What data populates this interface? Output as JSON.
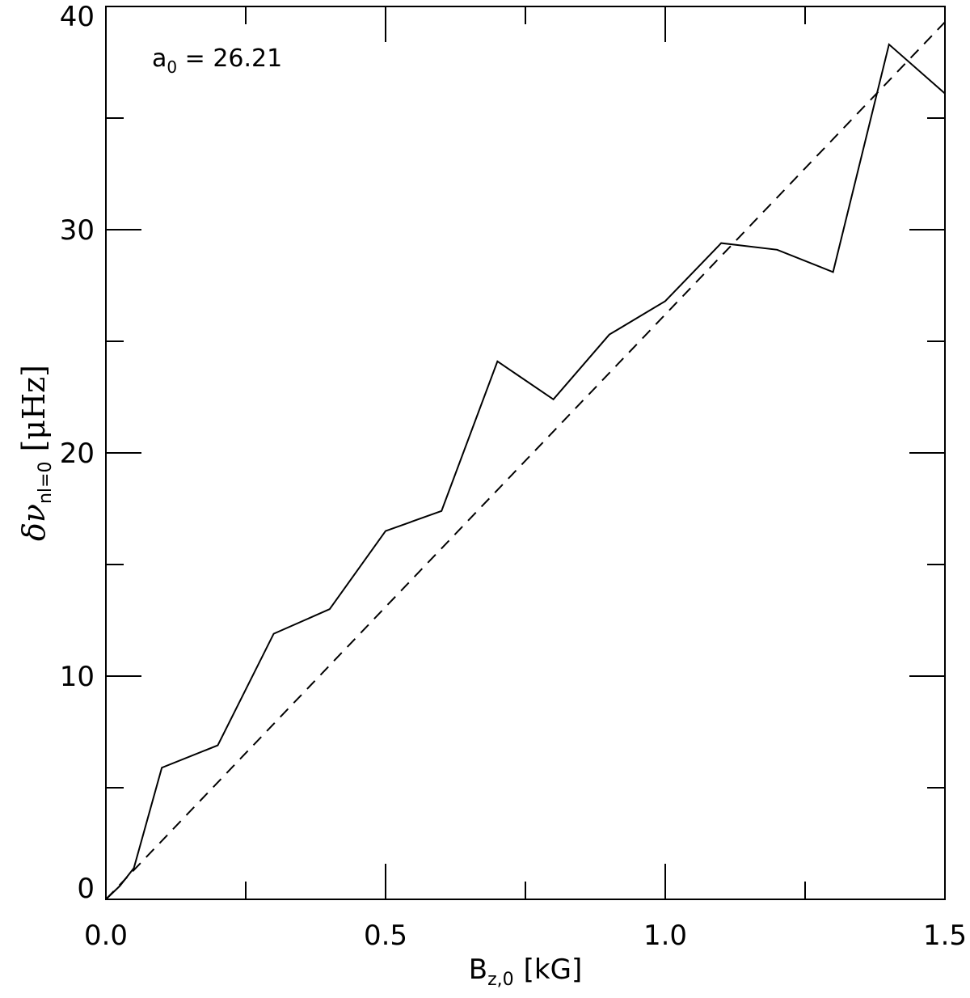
{
  "chart_data": {
    "type": "line",
    "title": "",
    "xlabel": {
      "main": "B",
      "sub": "z,0",
      "unit": "[kG]"
    },
    "ylabel": {
      "main": "δν",
      "sub": "nl=0",
      "unit": "[μHz]"
    },
    "xlim": [
      0,
      1.5
    ],
    "ylim": [
      0,
      40
    ],
    "x_ticks": [
      0.0,
      0.5,
      1.0,
      1.5
    ],
    "x_tick_labels": [
      "0.0",
      "0.5",
      "1.0",
      "1.5"
    ],
    "x_minor_ticks": [
      0.25,
      0.75,
      1.25
    ],
    "y_ticks": [
      0,
      10,
      20,
      30,
      40
    ],
    "y_tick_labels": [
      "0",
      "10",
      "20",
      "30",
      "40"
    ],
    "y_minor_ticks": [
      5,
      15,
      25,
      35
    ],
    "grid": false,
    "annotation": {
      "main": "a",
      "sub": "0",
      "value": " = 26.21"
    },
    "series": [
      {
        "style": "solid",
        "x": [
          0.0,
          0.025,
          0.05,
          0.1,
          0.2,
          0.3,
          0.4,
          0.5,
          0.6,
          0.7,
          0.8,
          0.9,
          1.0,
          1.1,
          1.2,
          1.3,
          1.4,
          1.5
        ],
        "y": [
          0.0,
          0.6,
          1.4,
          5.9,
          6.9,
          11.9,
          13.0,
          16.5,
          17.4,
          24.1,
          22.4,
          25.3,
          26.8,
          29.4,
          29.1,
          28.1,
          38.3,
          36.1
        ]
      },
      {
        "style": "dashed",
        "x": [
          0.0,
          1.5
        ],
        "y": [
          0.0,
          39.3
        ]
      }
    ]
  }
}
